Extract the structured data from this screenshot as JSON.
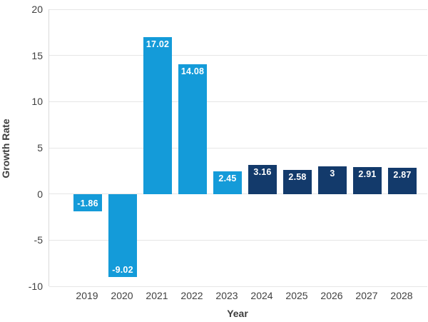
{
  "chart_data": {
    "type": "bar",
    "title": "",
    "xlabel": "Year",
    "ylabel": "Growth Rate",
    "categories": [
      "2019",
      "2020",
      "2021",
      "2022",
      "2023",
      "2024",
      "2025",
      "2026",
      "2027",
      "2028"
    ],
    "values": [
      -1.86,
      -9.02,
      17.02,
      14.08,
      2.45,
      3.16,
      2.58,
      3,
      2.91,
      2.87
    ],
    "value_labels": [
      "-1.86",
      "-9.02",
      "17.02",
      "14.08",
      "2.45",
      "3.16",
      "2.58",
      "3",
      "2.91",
      "2.87"
    ],
    "bar_colors": [
      "#149bd9",
      "#149bd9",
      "#149bd9",
      "#149bd9",
      "#149bd9",
      "#133a6b",
      "#133a6b",
      "#133a6b",
      "#133a6b",
      "#133a6b"
    ],
    "series_colors": {
      "historical": "#149bd9",
      "forecast": "#133a6b"
    },
    "ylim": [
      -10,
      20
    ],
    "yticks": [
      20,
      15,
      10,
      5,
      0,
      -5,
      -10
    ],
    "grid": true,
    "legend": "none",
    "label_color": "#ffffff",
    "text_color": "#404040"
  }
}
